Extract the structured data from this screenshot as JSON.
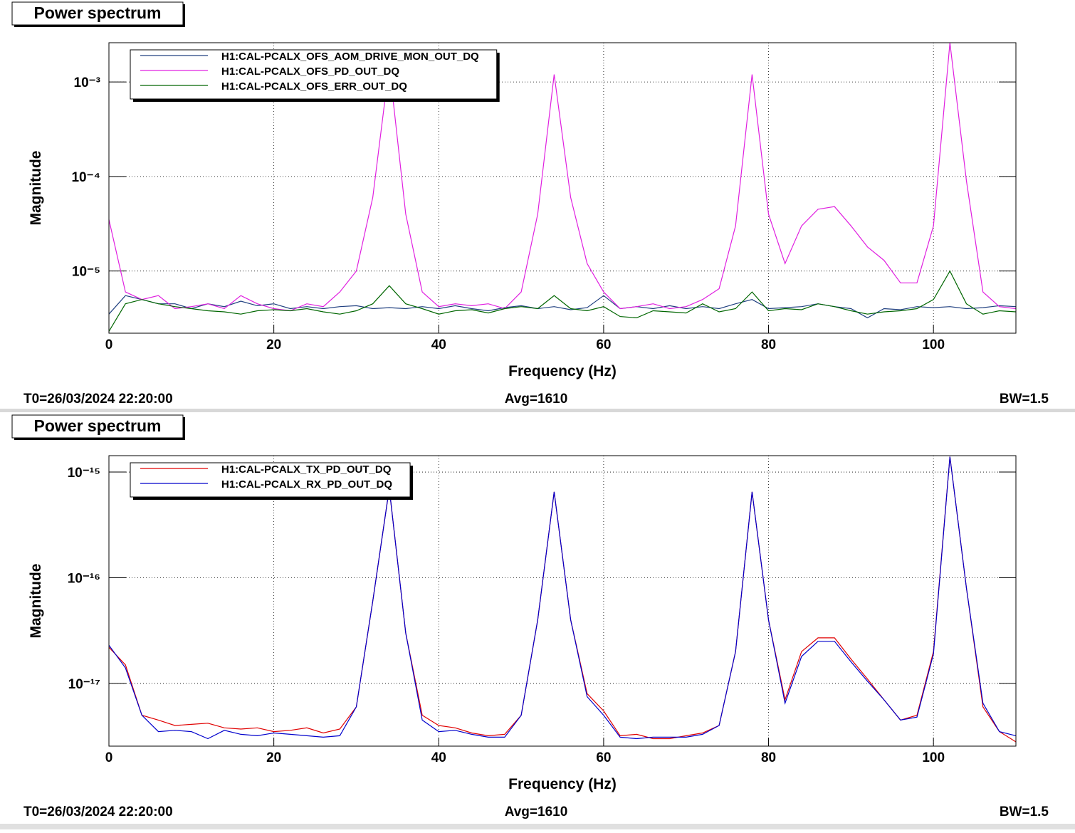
{
  "chart_data": [
    {
      "type": "line",
      "title": "Power spectrum",
      "xlabel": "Frequency (Hz)",
      "ylabel": "Magnitude",
      "footer": {
        "left": "T0=26/03/2024 22:20:00",
        "center": "Avg=1610",
        "right": "BW=1.5"
      },
      "xlim": [
        0,
        110
      ],
      "xticks": [
        0,
        20,
        40,
        60,
        80,
        100
      ],
      "ylim": [
        2.2e-06,
        0.0026
      ],
      "log_y": true,
      "grid": true,
      "legend": "upper left",
      "yticks": [
        {
          "value": 1e-05,
          "label": "10⁻⁵"
        },
        {
          "value": 0.0001,
          "label": "10⁻⁴"
        },
        {
          "value": 0.001,
          "label": "10⁻³"
        }
      ],
      "x": [
        0,
        2,
        4,
        6,
        8,
        10,
        12,
        14,
        16,
        18,
        20,
        22,
        24,
        26,
        28,
        30,
        32,
        34,
        36,
        38,
        40,
        42,
        44,
        46,
        48,
        50,
        52,
        54,
        56,
        58,
        60,
        62,
        64,
        66,
        68,
        70,
        72,
        74,
        76,
        78,
        80,
        82,
        84,
        86,
        88,
        90,
        92,
        94,
        96,
        98,
        100,
        102,
        104,
        106,
        108,
        110
      ],
      "series": [
        {
          "name": "H1:CAL-PCALX_OFS_AOM_DRIVE_MON_OUT_DQ",
          "color": "#204080",
          "values": [
            3.5e-06,
            5.5e-06,
            5e-06,
            4.5e-06,
            4.5e-06,
            4e-06,
            4.5e-06,
            4.2e-06,
            4.8e-06,
            4.3e-06,
            4.5e-06,
            4e-06,
            4.2e-06,
            4e-06,
            4.2e-06,
            4.3e-06,
            4e-06,
            4.1e-06,
            4e-06,
            4.2e-06,
            4e-06,
            4.3e-06,
            4e-06,
            3.8e-06,
            4.1e-06,
            4.3e-06,
            4e-06,
            4.2e-06,
            3.9e-06,
            4.1e-06,
            5.5e-06,
            4e-06,
            4.2e-06,
            4e-06,
            4.3e-06,
            4e-06,
            4.2e-06,
            4e-06,
            4.5e-06,
            5e-06,
            4e-06,
            4.1e-06,
            4.2e-06,
            4.5e-06,
            4.2e-06,
            4e-06,
            3.2e-06,
            4e-06,
            3.9e-06,
            4.2e-06,
            4.1e-06,
            4.2e-06,
            4e-06,
            4.1e-06,
            4.3e-06,
            4.2e-06
          ]
        },
        {
          "name": "H1:CAL-PCALX_OFS_PD_OUT_DQ",
          "color": "#e020e0",
          "values": [
            3.5e-05,
            6e-06,
            5e-06,
            5.5e-06,
            4e-06,
            4.2e-06,
            4.5e-06,
            4e-06,
            5.5e-06,
            4.5e-06,
            4e-06,
            3.8e-06,
            4.5e-06,
            4.2e-06,
            6e-06,
            1e-05,
            6e-05,
            0.0015,
            4e-05,
            6e-06,
            4.2e-06,
            4.5e-06,
            4.3e-06,
            4.5e-06,
            4e-06,
            6e-06,
            4e-05,
            0.0012,
            6e-05,
            1.2e-05,
            6e-06,
            4e-06,
            4.2e-06,
            4.5e-06,
            4e-06,
            4.2e-06,
            5e-06,
            6.5e-06,
            3e-05,
            0.0012,
            4e-05,
            1.2e-05,
            3e-05,
            4.5e-05,
            4.8e-05,
            3e-05,
            1.8e-05,
            1.3e-05,
            7.5e-06,
            7.5e-06,
            3e-05,
            0.0026,
            9e-05,
            6e-06,
            4.2e-06,
            4e-06
          ]
        },
        {
          "name": "H1:CAL-PCALX_OFS_ERR_OUT_DQ",
          "color": "#006600",
          "values": [
            2.3e-06,
            4.5e-06,
            5e-06,
            4.5e-06,
            4.2e-06,
            4e-06,
            3.8e-06,
            3.7e-06,
            3.5e-06,
            3.8e-06,
            3.9e-06,
            3.8e-06,
            4e-06,
            3.7e-06,
            3.5e-06,
            3.8e-06,
            4.5e-06,
            7e-06,
            4.5e-06,
            4e-06,
            3.5e-06,
            3.8e-06,
            3.9e-06,
            3.6e-06,
            4e-06,
            4.2e-06,
            4e-06,
            5.5e-06,
            4e-06,
            3.8e-06,
            4.2e-06,
            3.3e-06,
            3.2e-06,
            3.8e-06,
            3.7e-06,
            3.6e-06,
            4.5e-06,
            3.7e-06,
            4e-06,
            6e-06,
            3.8e-06,
            4e-06,
            3.9e-06,
            4.5e-06,
            4.2e-06,
            3.8e-06,
            3.5e-06,
            3.7e-06,
            3.8e-06,
            4e-06,
            5e-06,
            1e-05,
            4.5e-06,
            3.5e-06,
            3.8e-06,
            3.7e-06
          ]
        }
      ]
    },
    {
      "type": "line",
      "title": "Power spectrum",
      "xlabel": "Frequency (Hz)",
      "ylabel": "Magnitude",
      "footer": {
        "left": "T0=26/03/2024 22:20:00",
        "center": "Avg=1610",
        "right": "BW=1.5"
      },
      "xlim": [
        0,
        110
      ],
      "xticks": [
        0,
        20,
        40,
        60,
        80,
        100
      ],
      "ylim": [
        2.55e-18,
        1.43e-15
      ],
      "log_y": true,
      "grid": true,
      "legend": "upper left",
      "yticks": [
        {
          "value": 1e-17,
          "label": "10⁻¹⁷"
        },
        {
          "value": 1e-16,
          "label": "10⁻¹⁶"
        },
        {
          "value": 1e-15,
          "label": "10⁻¹⁵"
        }
      ],
      "x": [
        0,
        2,
        4,
        6,
        8,
        10,
        12,
        14,
        16,
        18,
        20,
        22,
        24,
        26,
        28,
        30,
        32,
        34,
        36,
        38,
        40,
        42,
        44,
        46,
        48,
        50,
        52,
        54,
        56,
        58,
        60,
        62,
        64,
        66,
        68,
        70,
        72,
        74,
        76,
        78,
        80,
        82,
        84,
        86,
        88,
        90,
        92,
        94,
        96,
        98,
        100,
        102,
        104,
        106,
        108,
        110
      ],
      "series": [
        {
          "name": "H1:CAL-PCALX_TX_PD_OUT_DQ",
          "color": "#e00000",
          "values": [
            2.2e-17,
            1.5e-17,
            5e-18,
            4.5e-18,
            4e-18,
            4.1e-18,
            4.2e-18,
            3.8e-18,
            3.7e-18,
            3.8e-18,
            3.5e-18,
            3.6e-18,
            3.8e-18,
            3.4e-18,
            3.7e-18,
            6e-18,
            6e-17,
            7e-16,
            3e-17,
            5e-18,
            4e-18,
            3.8e-18,
            3.4e-18,
            3.2e-18,
            3.3e-18,
            5e-18,
            4e-17,
            6.5e-16,
            4e-17,
            8e-18,
            5.5e-18,
            3.2e-18,
            3.3e-18,
            3e-18,
            3e-18,
            3.2e-18,
            3.4e-18,
            4e-18,
            2e-17,
            6.5e-16,
            4e-17,
            7e-18,
            2e-17,
            2.7e-17,
            2.7e-17,
            1.7e-17,
            1.1e-17,
            7e-18,
            4.5e-18,
            5e-18,
            2e-17,
            1.4e-15,
            8e-17,
            6e-18,
            3.5e-18,
            2.8e-18
          ]
        },
        {
          "name": "H1:CAL-PCALX_RX_PD_OUT_DQ",
          "color": "#0000cc",
          "values": [
            2.3e-17,
            1.4e-17,
            5e-18,
            3.5e-18,
            3.6e-18,
            3.5e-18,
            3e-18,
            3.6e-18,
            3.3e-18,
            3.2e-18,
            3.4e-18,
            3.3e-18,
            3.2e-18,
            3.1e-18,
            3.2e-18,
            6e-18,
            6e-17,
            7e-16,
            3e-17,
            4.5e-18,
            3.5e-18,
            3.6e-18,
            3.3e-18,
            3.1e-18,
            3.1e-18,
            5e-18,
            4e-17,
            6.5e-16,
            4e-17,
            7.5e-18,
            5e-18,
            3.1e-18,
            3e-18,
            3.1e-18,
            3.1e-18,
            3.1e-18,
            3.3e-18,
            4e-18,
            2e-17,
            6.5e-16,
            4e-17,
            6.5e-18,
            1.8e-17,
            2.5e-17,
            2.5e-17,
            1.6e-17,
            1.05e-17,
            7e-18,
            4.5e-18,
            4.8e-18,
            1.9e-17,
            1.4e-15,
            8e-17,
            6.5e-18,
            3.5e-18,
            3.2e-18
          ]
        }
      ]
    }
  ]
}
